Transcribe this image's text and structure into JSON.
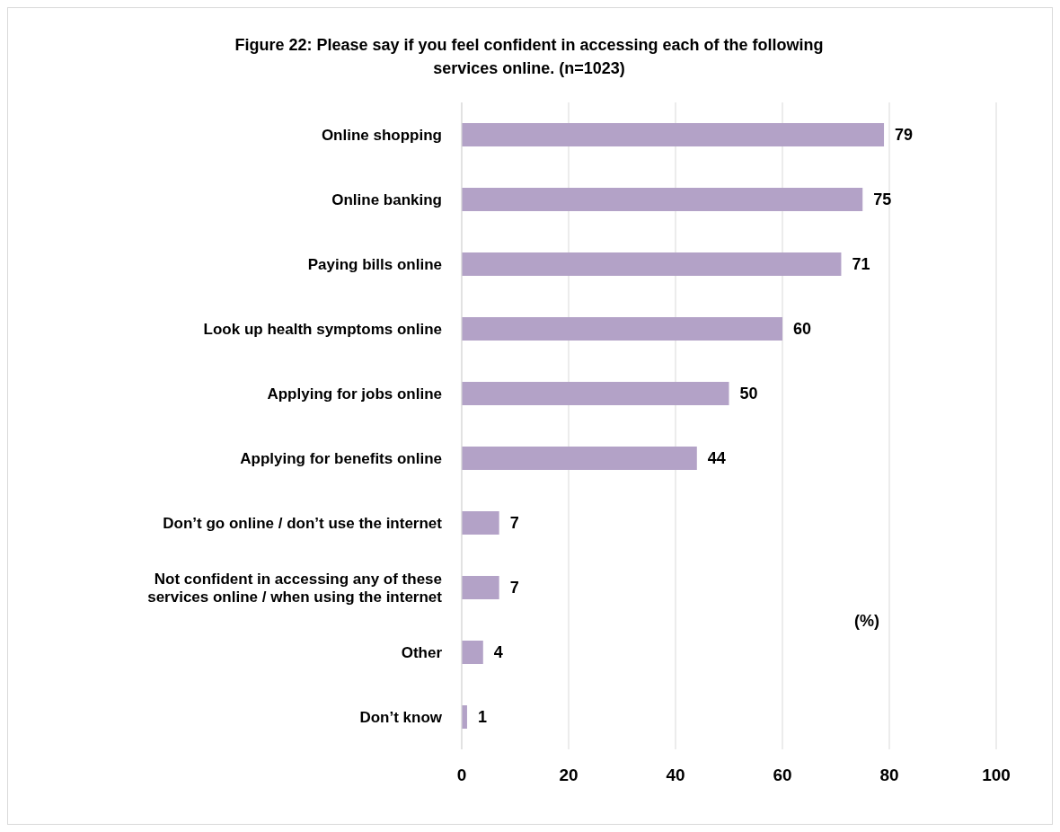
{
  "chart_data": {
    "type": "bar",
    "orientation": "horizontal",
    "title": "Figure 22: Please say if you feel confident in accessing each of the following services online. (n=1023)",
    "categories": [
      "Online shopping",
      "Online banking",
      "Paying bills online",
      "Look up health symptoms online",
      "Applying for jobs online",
      "Applying for benefits online",
      "Don’t go online / don’t use the internet",
      "Not confident in accessing any of these services online / when using the internet",
      "Other",
      "Don’t know"
    ],
    "values": [
      79,
      75,
      71,
      60,
      50,
      44,
      7,
      7,
      4,
      1
    ],
    "color": "#b3a2c7",
    "xlim": [
      0,
      100
    ],
    "xticks": [
      0,
      20,
      40,
      60,
      80,
      100
    ],
    "grid": "x",
    "data_labels": true,
    "annotations": [
      "(%)"
    ]
  }
}
